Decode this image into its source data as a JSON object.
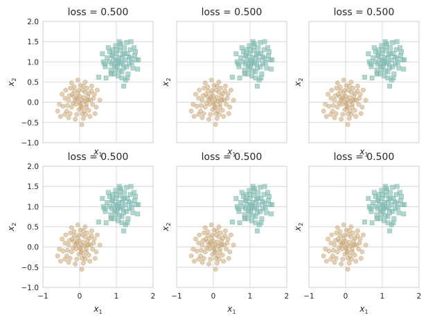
{
  "figure": {
    "background": "#ffffff",
    "grid_color": "#d0d0d0",
    "spine_color": "#cccccc",
    "text_color": "#262626"
  },
  "chart_data": {
    "type": "scatter",
    "layout": "2x3 grid of identical subplots",
    "grid": true,
    "xlim": [
      -1,
      2
    ],
    "ylim": [
      -1.0,
      2.0
    ],
    "xticks": [
      "-1",
      "0",
      "1",
      "2"
    ],
    "yticks": [
      "-1.0",
      "-0.5",
      "0.0",
      "0.5",
      "1.0",
      "1.5",
      "2.0"
    ],
    "xlabel": "x1",
    "ylabel": "x2",
    "subplot_titles": [
      "loss = 0.500",
      "loss = 0.500",
      "loss = 0.500",
      "loss = 0.500",
      "loss = 0.500",
      "loss = 0.500"
    ],
    "series": [
      {
        "marker": "circle",
        "color": "#c8a77a",
        "alpha": 0.55,
        "points": [
          [
            -0.12,
            0.05
          ],
          [
            0.05,
            -0.1
          ],
          [
            0.1,
            0.12
          ],
          [
            -0.05,
            0.22
          ],
          [
            0.18,
            -0.05
          ],
          [
            -0.22,
            -0.12
          ],
          [
            0.0,
            0.0
          ],
          [
            0.08,
            0.3
          ],
          [
            -0.15,
            0.38
          ],
          [
            0.22,
            0.15
          ],
          [
            -0.3,
            0.05
          ],
          [
            0.12,
            -0.22
          ],
          [
            -0.08,
            -0.3
          ],
          [
            0.25,
            -0.2
          ],
          [
            -0.35,
            -0.22
          ],
          [
            0.3,
            0.05
          ],
          [
            0.02,
            0.42
          ],
          [
            -0.2,
            0.2
          ],
          [
            0.15,
            0.25
          ],
          [
            -0.02,
            -0.18
          ],
          [
            0.35,
            -0.05
          ],
          [
            -0.4,
            0.1
          ],
          [
            0.05,
            0.05
          ],
          [
            -0.1,
            -0.05
          ],
          [
            0.2,
            0.35
          ],
          [
            -0.25,
            0.35
          ],
          [
            0.4,
            0.2
          ],
          [
            -0.45,
            -0.1
          ],
          [
            0.1,
            -0.4
          ],
          [
            -0.12,
            -0.42
          ],
          [
            0.28,
            -0.35
          ],
          [
            0.06,
            -0.55
          ],
          [
            -0.55,
            -0.05
          ],
          [
            0.45,
            -0.12
          ],
          [
            -0.3,
            -0.38
          ],
          [
            0.15,
            0.5
          ],
          [
            -0.05,
            0.55
          ],
          [
            0.33,
            0.4
          ],
          [
            -0.38,
            0.3
          ],
          [
            0.02,
            -0.05
          ],
          [
            -0.07,
            0.12
          ],
          [
            0.13,
            0.02
          ],
          [
            -0.18,
            -0.02
          ],
          [
            0.24,
            0.06
          ],
          [
            -0.02,
            0.3
          ],
          [
            0.07,
            -0.28
          ],
          [
            -0.26,
            -0.28
          ],
          [
            0.38,
            0.1
          ],
          [
            -0.6,
            -0.22
          ],
          [
            0.55,
            0.05
          ],
          [
            -0.48,
            0.2
          ],
          [
            0.18,
            -0.12
          ],
          [
            0.0,
            0.15
          ],
          [
            -0.14,
            0.28
          ],
          [
            0.26,
            0.22
          ],
          [
            -0.33,
            -0.08
          ],
          [
            0.42,
            -0.28
          ],
          [
            -0.22,
            0.48
          ],
          [
            0.1,
            0.4
          ],
          [
            -0.4,
            -0.3
          ],
          [
            0.85,
            0.72
          ],
          [
            -0.08,
            0.08
          ],
          [
            0.04,
            -0.14
          ],
          [
            -0.16,
            0.14
          ],
          [
            0.16,
            -0.3
          ],
          [
            0.32,
            0.28
          ],
          [
            -0.28,
            0.16
          ],
          [
            0.48,
            0.3
          ],
          [
            -0.52,
            -0.35
          ],
          [
            0.2,
            0.05
          ]
        ]
      },
      {
        "marker": "square",
        "color": "#7fb9ae",
        "alpha": 0.6,
        "points": [
          [
            1.05,
            1.0
          ],
          [
            1.15,
            1.1
          ],
          [
            0.95,
            0.92
          ],
          [
            1.2,
            0.85
          ],
          [
            0.88,
            1.15
          ],
          [
            1.1,
            1.28
          ],
          [
            1.25,
            1.05
          ],
          [
            0.85,
            0.8
          ],
          [
            1.0,
            1.2
          ],
          [
            1.3,
            1.2
          ],
          [
            0.92,
            1.05
          ],
          [
            1.08,
            0.78
          ],
          [
            1.18,
            0.95
          ],
          [
            0.8,
            1.0
          ],
          [
            1.35,
            0.95
          ],
          [
            1.02,
            0.88
          ],
          [
            0.9,
            1.3
          ],
          [
            1.22,
            1.35
          ],
          [
            1.12,
            1.45
          ],
          [
            1.28,
            1.48
          ],
          [
            0.75,
            1.1
          ],
          [
            1.4,
            1.08
          ],
          [
            1.45,
            0.85
          ],
          [
            1.05,
            0.65
          ],
          [
            0.7,
            0.88
          ],
          [
            1.32,
            0.7
          ],
          [
            0.98,
            1.4
          ],
          [
            0.82,
            1.25
          ],
          [
            1.5,
            1.15
          ],
          [
            1.15,
            0.6
          ],
          [
            1.38,
            1.3
          ],
          [
            0.65,
            1.0
          ],
          [
            1.55,
            1.05
          ],
          [
            1.25,
            0.55
          ],
          [
            0.95,
            0.7
          ],
          [
            1.18,
            1.18
          ],
          [
            1.06,
            1.1
          ],
          [
            0.88,
            0.95
          ],
          [
            1.12,
            0.98
          ],
          [
            1.0,
            1.05
          ],
          [
            1.4,
            1.5
          ],
          [
            0.62,
            1.2
          ],
          [
            0.52,
            0.62
          ],
          [
            0.72,
            0.6
          ],
          [
            1.2,
            0.4
          ],
          [
            1.58,
            0.82
          ],
          [
            1.1,
            1.38
          ],
          [
            0.78,
            1.35
          ],
          [
            1.48,
            1.35
          ],
          [
            1.28,
            0.88
          ],
          [
            0.9,
            1.18
          ],
          [
            1.03,
            0.95
          ],
          [
            1.22,
            1.22
          ],
          [
            0.97,
            0.82
          ],
          [
            1.35,
            1.12
          ],
          [
            1.15,
            0.75
          ],
          [
            0.86,
            0.7
          ],
          [
            1.42,
            0.98
          ],
          [
            1.08,
            1.5
          ],
          [
            0.68,
            0.95
          ],
          [
            1.52,
            1.25
          ],
          [
            1.3,
            0.6
          ],
          [
            1.6,
            1.05
          ],
          [
            1.0,
            1.3
          ]
        ]
      }
    ]
  }
}
